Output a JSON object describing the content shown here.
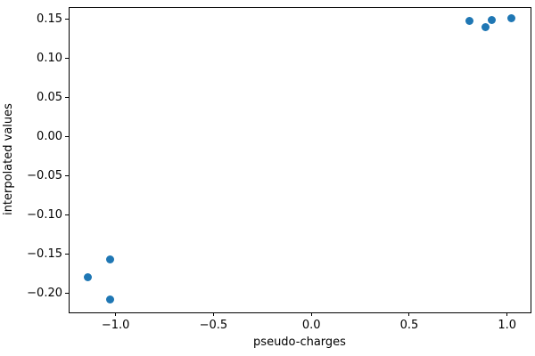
{
  "chart_data": {
    "type": "scatter",
    "title": "",
    "xlabel": "pseudo-charges",
    "ylabel": "interpolated values",
    "xlim": [
      -1.24,
      1.12
    ],
    "ylim": [
      -0.225,
      0.165
    ],
    "xticks": [
      -1.0,
      -0.5,
      0.0,
      0.5,
      1.0
    ],
    "xtick_labels": [
      "−1.0",
      "−0.5",
      "0.0",
      "0.5",
      "1.0"
    ],
    "yticks": [
      0.15,
      0.1,
      0.05,
      0.0,
      -0.05,
      -0.1,
      -0.15,
      -0.2
    ],
    "ytick_labels": [
      "0.15",
      "0.10",
      "0.05",
      "0.00",
      "−0.05",
      "−0.10",
      "−0.15",
      "−0.20"
    ],
    "grid": false,
    "legend": null,
    "marker_color": "#1f77b4",
    "marker_diameter_px": 9,
    "points": [
      {
        "x": -1.14,
        "y": -0.18
      },
      {
        "x": -1.03,
        "y": -0.157
      },
      {
        "x": -1.03,
        "y": -0.209
      },
      {
        "x": 0.81,
        "y": 0.147
      },
      {
        "x": 0.89,
        "y": 0.139
      },
      {
        "x": 0.92,
        "y": 0.149
      },
      {
        "x": 1.02,
        "y": 0.151
      }
    ]
  }
}
